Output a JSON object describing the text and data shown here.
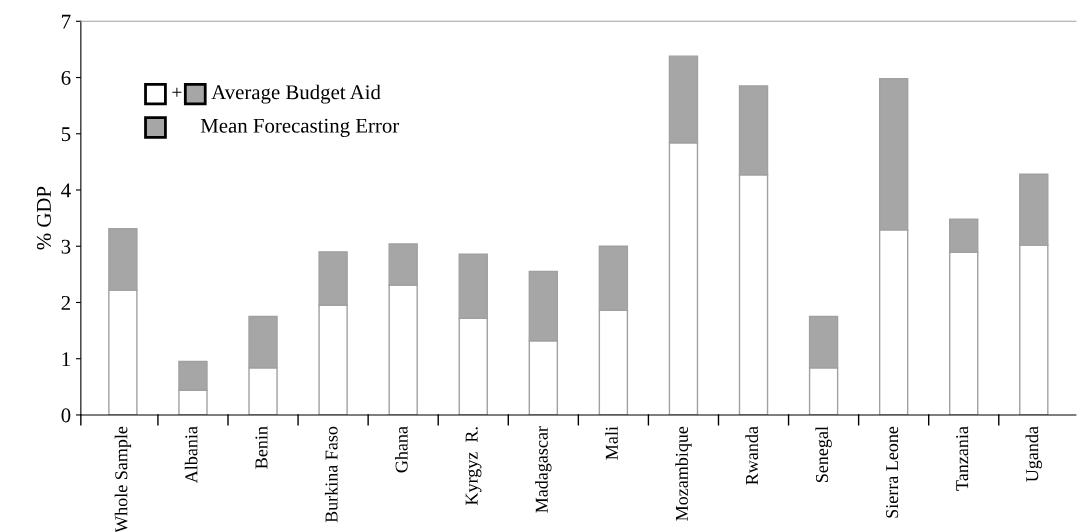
{
  "chart_data": {
    "type": "bar",
    "stacked": true,
    "ylabel": "% GDP",
    "categories": [
      "Whole Sample",
      "Albania",
      "Benin",
      "Burkina Faso",
      "Ghana",
      "Kyrgyz  R.",
      "Madagascar",
      "Mali",
      "Mozambique",
      "Rwanda",
      "Senegal",
      "Sierra Leone",
      "Tanzania",
      "Uganda"
    ],
    "series": [
      {
        "color": "#ffffff",
        "values": [
          2.22,
          0.44,
          0.84,
          1.95,
          2.31,
          1.72,
          1.32,
          1.86,
          4.84,
          4.27,
          0.84,
          3.29,
          2.89,
          3.02
        ]
      },
      {
        "name": "Mean Forecasting Error",
        "color": "#a6a6a6",
        "values": [
          1.09,
          0.51,
          0.91,
          0.95,
          0.73,
          1.14,
          1.23,
          1.14,
          1.54,
          1.58,
          0.91,
          2.69,
          0.59,
          1.26
        ]
      }
    ],
    "annotations": [
      "+",
      "Average Budget Aid"
    ],
    "legend": "top left",
    "ylim": [
      0,
      7
    ],
    "yticks": [
      0,
      1,
      2,
      3,
      4,
      5,
      6,
      7
    ],
    "grid": false
  }
}
